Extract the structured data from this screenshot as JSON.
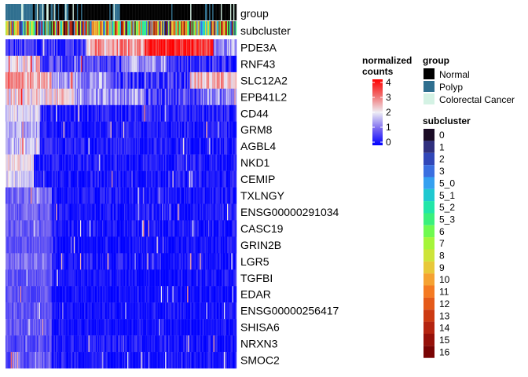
{
  "chart_data": {
    "type": "heatmap",
    "annotation_tracks": [
      "group",
      "subcluster"
    ],
    "genes": [
      "PDE3A",
      "RNF43",
      "SLC12A2",
      "EPB41L2",
      "CD44",
      "GRM8",
      "AGBL4",
      "NKD1",
      "CEMIP",
      "TXLNGY",
      "ENSG00000291034",
      "CASC19",
      "GRIN2B",
      "LGR5",
      "TGFBI",
      "EDAR",
      "ENSG00000256417",
      "SHISA6",
      "NRXN3",
      "SMOC2"
    ],
    "gene_profiles": [
      {
        "segments": [
          [
            0,
            0.35,
            0.4
          ],
          [
            0.35,
            0.6,
            2.6
          ],
          [
            0.6,
            0.9,
            3.8
          ],
          [
            0.9,
            1.0,
            1.2
          ]
        ],
        "noise": 0.8
      },
      {
        "segments": [
          [
            0,
            0.15,
            2.2
          ],
          [
            0.15,
            0.5,
            0.6
          ],
          [
            0.5,
            0.7,
            1.4
          ],
          [
            0.7,
            1.0,
            0.4
          ]
        ],
        "noise": 0.7
      },
      {
        "segments": [
          [
            0,
            0.2,
            2.6
          ],
          [
            0.2,
            0.45,
            1.3
          ],
          [
            0.45,
            0.8,
            0.5
          ],
          [
            0.8,
            1.0,
            2.4
          ]
        ],
        "noise": 0.7
      },
      {
        "segments": [
          [
            0,
            0.3,
            2.1
          ],
          [
            0.3,
            0.6,
            1.4
          ],
          [
            0.6,
            0.85,
            0.6
          ],
          [
            0.85,
            1.0,
            1.2
          ]
        ],
        "noise": 0.7
      },
      {
        "segments": [
          [
            0,
            0.15,
            1.8
          ],
          [
            0.15,
            1.0,
            0.25
          ]
        ],
        "noise": 0.5
      },
      {
        "segments": [
          [
            0,
            0.15,
            1.5
          ],
          [
            0.15,
            1.0,
            0.15
          ]
        ],
        "noise": 0.45
      },
      {
        "segments": [
          [
            0,
            0.15,
            1.6
          ],
          [
            0.15,
            1.0,
            0.2
          ]
        ],
        "noise": 0.45
      },
      {
        "segments": [
          [
            0,
            0.12,
            2.0
          ],
          [
            0.12,
            1.0,
            0.15
          ]
        ],
        "noise": 0.45
      },
      {
        "segments": [
          [
            0,
            0.12,
            1.8
          ],
          [
            0.12,
            1.0,
            0.15
          ]
        ],
        "noise": 0.45
      },
      {
        "segments": [
          [
            0,
            0.2,
            1.0
          ],
          [
            0.2,
            1.0,
            0.15
          ]
        ],
        "noise": 0.4
      },
      {
        "segments": [
          [
            0,
            0.2,
            0.9
          ],
          [
            0.2,
            1.0,
            0.15
          ]
        ],
        "noise": 0.4
      },
      {
        "segments": [
          [
            0,
            0.2,
            0.9
          ],
          [
            0.2,
            1.0,
            0.15
          ]
        ],
        "noise": 0.4
      },
      {
        "segments": [
          [
            0,
            0.2,
            0.8
          ],
          [
            0.2,
            1.0,
            0.1
          ]
        ],
        "noise": 0.35
      },
      {
        "segments": [
          [
            0,
            0.2,
            1.0
          ],
          [
            0.2,
            1.0,
            0.15
          ]
        ],
        "noise": 0.4
      },
      {
        "segments": [
          [
            0,
            0.2,
            0.8
          ],
          [
            0.2,
            1.0,
            0.1
          ]
        ],
        "noise": 0.35
      },
      {
        "segments": [
          [
            0,
            0.2,
            0.7
          ],
          [
            0.2,
            1.0,
            0.1
          ]
        ],
        "noise": 0.35
      },
      {
        "segments": [
          [
            0,
            0.2,
            0.8
          ],
          [
            0.2,
            1.0,
            0.1
          ]
        ],
        "noise": 0.35
      },
      {
        "segments": [
          [
            0,
            0.2,
            0.8
          ],
          [
            0.2,
            1.0,
            0.1
          ]
        ],
        "noise": 0.35
      },
      {
        "segments": [
          [
            0,
            0.2,
            0.7
          ],
          [
            0.2,
            1.0,
            0.15
          ]
        ],
        "noise": 0.4
      },
      {
        "segments": [
          [
            0,
            0.2,
            0.8
          ],
          [
            0.2,
            1.0,
            0.15
          ]
        ],
        "noise": 0.4
      }
    ],
    "group_layout": [
      [
        0,
        0.12,
        "Polyp"
      ],
      [
        0.12,
        0.27,
        "mixed"
      ],
      [
        0.27,
        0.45,
        "Normal"
      ],
      [
        0.45,
        0.5,
        "mixed"
      ],
      [
        0.5,
        0.86,
        "Normal"
      ],
      [
        0.86,
        0.9,
        "mixed"
      ],
      [
        0.9,
        1.0,
        "Normal"
      ]
    ],
    "color_scale": {
      "title_line1": "normalized",
      "title_line2": "counts",
      "stops": [
        [
          0,
          "#0000ff"
        ],
        [
          1,
          "#7a68f0"
        ],
        [
          2,
          "#efeef5"
        ],
        [
          3,
          "#f07070"
        ],
        [
          4,
          "#ff0000"
        ]
      ],
      "ticks": [
        "4",
        "3",
        "2",
        "1",
        "0"
      ],
      "range": [
        0,
        4
      ]
    },
    "legend_group": {
      "title": "group",
      "items": [
        {
          "label": "Normal",
          "color": "#000000"
        },
        {
          "label": "Polyp",
          "color": "#2f6f8f"
        },
        {
          "label": "Colorectal Cancer",
          "color": "#d4f2e4"
        }
      ]
    },
    "legend_subcluster": {
      "title": "subcluster",
      "items": [
        {
          "label": "0",
          "color": "#1b0c26"
        },
        {
          "label": "1",
          "color": "#30307e"
        },
        {
          "label": "2",
          "color": "#3147b8"
        },
        {
          "label": "3",
          "color": "#3b6fe0"
        },
        {
          "label": "5_0",
          "color": "#35a0f0"
        },
        {
          "label": "5_1",
          "color": "#1fc8d0"
        },
        {
          "label": "5_2",
          "color": "#22e6a8"
        },
        {
          "label": "5_3",
          "color": "#3af07c"
        },
        {
          "label": "6",
          "color": "#6ffa50"
        },
        {
          "label": "7",
          "color": "#a5f53a"
        },
        {
          "label": "8",
          "color": "#cde43a"
        },
        {
          "label": "9",
          "color": "#e8c83a"
        },
        {
          "label": "10",
          "color": "#f5a232"
        },
        {
          "label": "11",
          "color": "#f47a22"
        },
        {
          "label": "12",
          "color": "#e45a1a"
        },
        {
          "label": "13",
          "color": "#cc3a12"
        },
        {
          "label": "14",
          "color": "#b42410"
        },
        {
          "label": "15",
          "color": "#96110a"
        },
        {
          "label": "16",
          "color": "#790404"
        }
      ]
    }
  }
}
